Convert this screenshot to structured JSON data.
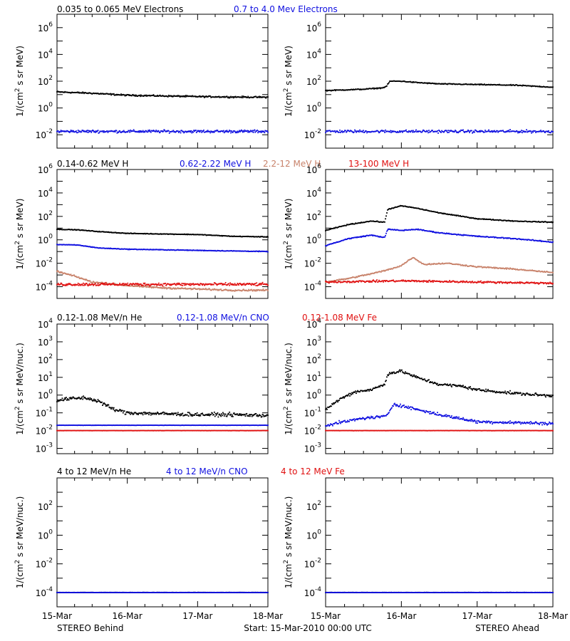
{
  "colors": {
    "black": "#000000",
    "blue": "#1010e0",
    "tan": "#c8826a",
    "red": "#e01010"
  },
  "footer": {
    "left": "STEREO Behind",
    "center": "Start: 15-Mar-2010 00:00 UTC",
    "right": "STEREO Ahead"
  },
  "x_axis": {
    "ticks": [
      "15-Mar",
      "16-Mar",
      "17-Mar",
      "18-Mar"
    ],
    "range_days": [
      0,
      3
    ]
  },
  "legends": [
    [
      {
        "text": "0.035 to 0.065 MeV Electrons",
        "color": "black"
      },
      {
        "text": "0.7 to 4.0 Mev Electrons",
        "color": "blue"
      }
    ],
    [
      {
        "text": "0.14-0.62 MeV H",
        "color": "black"
      },
      {
        "text": "0.62-2.22 MeV H",
        "color": "blue"
      },
      {
        "text": "2.2-12 MeV H",
        "color": "tan"
      },
      {
        "text": "13-100 MeV H",
        "color": "red"
      }
    ],
    [
      {
        "text": "0.12-1.08 MeV/n He",
        "color": "black"
      },
      {
        "text": "0.12-1.08 MeV/n CNO",
        "color": "blue"
      },
      {
        "text": "0.12-1.08 MeV Fe",
        "color": "red"
      }
    ],
    [
      {
        "text": "4 to 12 MeV/n He",
        "color": "black"
      },
      {
        "text": "4 to 12 MeV/n CNO",
        "color": "blue"
      },
      {
        "text": "4 to 12 MeV Fe",
        "color": "red"
      }
    ]
  ],
  "chart_data": [
    {
      "type": "scatter",
      "spacecraft": "STEREO Behind",
      "row": 0,
      "ylabel_lines": [
        "1/(cm",
        "2",
        " s sr MeV)"
      ],
      "yscale": "log",
      "ylim_exp": [
        -3,
        7
      ],
      "yticks": [
        {
          "base": "10",
          "exp": "-2"
        },
        {
          "base": "10",
          "exp": "0"
        },
        {
          "base": "10",
          "exp": "2"
        },
        {
          "base": "10",
          "exp": "4"
        },
        {
          "base": "10",
          "exp": "6"
        }
      ],
      "series": [
        {
          "color": "black",
          "x": [
            0,
            0.25,
            0.5,
            1.0,
            1.5,
            2.0,
            2.5,
            3.0
          ],
          "log10_y": [
            1.2,
            1.15,
            1.1,
            0.95,
            0.9,
            0.85,
            0.82,
            0.8
          ],
          "scatter": 0.08
        },
        {
          "color": "blue",
          "x": [
            0,
            1.0,
            2.0,
            3.0
          ],
          "log10_y": [
            -1.75,
            -1.75,
            -1.75,
            -1.75
          ],
          "scatter": 0.15
        }
      ]
    },
    {
      "type": "scatter",
      "spacecraft": "STEREO Ahead",
      "row": 0,
      "ylabel_lines": [
        "1/(cm",
        "2",
        " s sr MeV)"
      ],
      "yscale": "log",
      "ylim_exp": [
        -3,
        7
      ],
      "yticks": [
        {
          "base": "10",
          "exp": "-2"
        },
        {
          "base": "10",
          "exp": "0"
        },
        {
          "base": "10",
          "exp": "2"
        },
        {
          "base": "10",
          "exp": "4"
        },
        {
          "base": "10",
          "exp": "6"
        }
      ],
      "series": [
        {
          "color": "black",
          "x": [
            0,
            0.5,
            0.75,
            0.8,
            0.85,
            1.0,
            1.2,
            1.5,
            2.0,
            2.5,
            3.0
          ],
          "log10_y": [
            1.3,
            1.4,
            1.5,
            1.6,
            2.0,
            2.0,
            1.9,
            1.8,
            1.75,
            1.7,
            1.55
          ],
          "scatter": 0.05
        },
        {
          "color": "blue",
          "x": [
            0,
            1.0,
            2.0,
            3.0
          ],
          "log10_y": [
            -1.75,
            -1.75,
            -1.75,
            -1.75
          ],
          "scatter": 0.15
        }
      ]
    },
    {
      "type": "scatter",
      "spacecraft": "STEREO Behind",
      "row": 1,
      "ylabel_lines": [
        "1/(cm",
        "2",
        " s sr MeV)"
      ],
      "yscale": "log",
      "ylim_exp": [
        -5,
        6
      ],
      "yticks": [
        {
          "base": "10",
          "exp": "-4"
        },
        {
          "base": "10",
          "exp": "-2"
        },
        {
          "base": "10",
          "exp": "0"
        },
        {
          "base": "10",
          "exp": "2"
        },
        {
          "base": "10",
          "exp": "4"
        },
        {
          "base": "10",
          "exp": "6"
        }
      ],
      "series": [
        {
          "color": "black",
          "x": [
            0,
            0.3,
            0.6,
            1.0,
            1.5,
            2.0,
            2.5,
            3.0
          ],
          "log10_y": [
            0.9,
            0.85,
            0.7,
            0.55,
            0.5,
            0.45,
            0.3,
            0.25
          ],
          "scatter": 0.04
        },
        {
          "color": "blue",
          "x": [
            0,
            0.3,
            0.6,
            1.0,
            1.5,
            2.0,
            2.5,
            3.0
          ],
          "log10_y": [
            -0.4,
            -0.45,
            -0.7,
            -0.8,
            -0.85,
            -0.9,
            -0.95,
            -1.0
          ],
          "scatter": 0.04
        },
        {
          "color": "tan",
          "x": [
            0,
            0.25,
            0.5,
            1.0,
            1.5,
            2.0,
            2.5,
            3.0
          ],
          "log10_y": [
            -2.7,
            -3.1,
            -3.6,
            -3.9,
            -4.1,
            -4.2,
            -4.3,
            -4.3
          ],
          "scatter": 0.1
        },
        {
          "color": "red",
          "x": [
            0,
            1.0,
            2.0,
            3.0
          ],
          "log10_y": [
            -3.8,
            -3.8,
            -3.8,
            -3.8
          ],
          "scatter": 0.18
        }
      ]
    },
    {
      "type": "scatter",
      "spacecraft": "STEREO Ahead",
      "row": 1,
      "ylabel_lines": [
        "1/(cm",
        "2",
        " s sr MeV)"
      ],
      "yscale": "log",
      "ylim_exp": [
        -5,
        6
      ],
      "yticks": [
        {
          "base": "10",
          "exp": "-4"
        },
        {
          "base": "10",
          "exp": "-2"
        },
        {
          "base": "10",
          "exp": "0"
        },
        {
          "base": "10",
          "exp": "2"
        },
        {
          "base": "10",
          "exp": "4"
        },
        {
          "base": "10",
          "exp": "6"
        }
      ],
      "series": [
        {
          "color": "black",
          "x": [
            0,
            0.3,
            0.6,
            0.78,
            0.82,
            1.0,
            1.2,
            1.5,
            2.0,
            2.5,
            3.0
          ],
          "log10_y": [
            0.8,
            1.3,
            1.6,
            1.5,
            2.6,
            2.9,
            2.7,
            2.3,
            1.8,
            1.6,
            1.5
          ],
          "scatter": 0.05
        },
        {
          "color": "blue",
          "x": [
            0,
            0.3,
            0.6,
            0.78,
            0.82,
            1.0,
            1.2,
            1.5,
            2.0,
            2.5,
            3.0
          ],
          "log10_y": [
            -0.5,
            0.1,
            0.4,
            0.2,
            0.9,
            0.8,
            0.9,
            0.6,
            0.3,
            0.1,
            -0.2
          ],
          "scatter": 0.06
        },
        {
          "color": "tan",
          "x": [
            0,
            0.3,
            0.6,
            0.8,
            1.0,
            1.15,
            1.3,
            1.6,
            2.0,
            2.5,
            3.0
          ],
          "log10_y": [
            -3.6,
            -3.3,
            -2.9,
            -2.6,
            -2.2,
            -1.5,
            -2.1,
            -2.0,
            -2.3,
            -2.5,
            -2.8
          ],
          "scatter": 0.08
        },
        {
          "color": "red",
          "x": [
            0,
            1.0,
            2.0,
            3.0
          ],
          "log10_y": [
            -3.6,
            -3.5,
            -3.6,
            -3.7
          ],
          "scatter": 0.12
        }
      ]
    },
    {
      "type": "scatter",
      "spacecraft": "STEREO Behind",
      "row": 2,
      "ylabel_lines": [
        "1/(cm",
        "2",
        " s sr MeV/nuc.)"
      ],
      "yscale": "log",
      "ylim_exp": [
        -3.3,
        4
      ],
      "yticks": [
        {
          "base": "10",
          "exp": "-3"
        },
        {
          "base": "10",
          "exp": "-2"
        },
        {
          "base": "10",
          "exp": "-1"
        },
        {
          "base": "10",
          "exp": "0"
        },
        {
          "base": "10",
          "exp": "1"
        },
        {
          "base": "10",
          "exp": "2"
        },
        {
          "base": "10",
          "exp": "3"
        },
        {
          "base": "10",
          "exp": "4"
        }
      ],
      "series": [
        {
          "color": "black",
          "x": [
            0,
            0.2,
            0.4,
            0.6,
            0.8,
            1.0,
            1.5,
            2.0,
            2.5,
            3.0
          ],
          "log10_y": [
            -0.3,
            -0.2,
            -0.15,
            -0.35,
            -0.8,
            -1.0,
            -1.05,
            -1.1,
            -1.1,
            -1.15
          ],
          "scatter": 0.15
        },
        {
          "color": "blue",
          "x": [
            0,
            1.0,
            2.0,
            3.0
          ],
          "log10_y": [
            -1.7,
            -1.7,
            -1.7,
            -1.7
          ],
          "scatter": 0.01
        },
        {
          "color": "red",
          "x": [
            0,
            1.0,
            2.0,
            3.0
          ],
          "log10_y": [
            -2.0,
            -2.0,
            -2.0,
            -2.0
          ],
          "scatter": 0.01
        }
      ]
    },
    {
      "type": "scatter",
      "spacecraft": "STEREO Ahead",
      "row": 2,
      "ylabel_lines": [
        "1/(cm",
        "2",
        " s sr MeV/nuc.)"
      ],
      "yscale": "log",
      "ylim_exp": [
        -3.3,
        4
      ],
      "yticks": [
        {
          "base": "10",
          "exp": "-3"
        },
        {
          "base": "10",
          "exp": "-2"
        },
        {
          "base": "10",
          "exp": "-1"
        },
        {
          "base": "10",
          "exp": "0"
        },
        {
          "base": "10",
          "exp": "1"
        },
        {
          "base": "10",
          "exp": "2"
        },
        {
          "base": "10",
          "exp": "3"
        },
        {
          "base": "10",
          "exp": "4"
        }
      ],
      "series": [
        {
          "color": "black",
          "x": [
            0,
            0.2,
            0.4,
            0.6,
            0.78,
            0.82,
            1.0,
            1.2,
            1.5,
            1.8,
            2.0,
            2.5,
            3.0
          ],
          "log10_y": [
            -0.8,
            -0.2,
            0.2,
            0.3,
            0.6,
            1.2,
            1.35,
            1.0,
            0.6,
            0.5,
            0.3,
            0.1,
            -0.05
          ],
          "scatter": 0.12
        },
        {
          "color": "blue",
          "x": [
            0,
            0.5,
            0.8,
            0.9,
            1.0,
            1.2,
            1.5,
            2.0,
            3.0
          ],
          "log10_y": [
            -1.7,
            -1.3,
            -1.2,
            -0.5,
            -0.6,
            -0.8,
            -1.1,
            -1.5,
            -1.6
          ],
          "scatter": 0.12
        },
        {
          "color": "red",
          "x": [
            0,
            1.0,
            2.0,
            3.0
          ],
          "log10_y": [
            -2.0,
            -2.0,
            -2.0,
            -2.0
          ],
          "scatter": 0.01
        }
      ]
    },
    {
      "type": "scatter",
      "spacecraft": "STEREO Behind",
      "row": 3,
      "ylabel_lines": [
        "1/(cm",
        "2",
        " s sr MeV/nuc.)"
      ],
      "yscale": "log",
      "ylim_exp": [
        -5,
        4
      ],
      "yticks": [
        {
          "base": "10",
          "exp": "-4"
        },
        {
          "base": "10",
          "exp": "-2"
        },
        {
          "base": "10",
          "exp": "0"
        },
        {
          "base": "10",
          "exp": "2"
        }
      ],
      "series": [
        {
          "color": "black",
          "x": [
            0,
            3.0
          ],
          "log10_y": [
            -4.0,
            -4.0
          ],
          "scatter": 0.01
        },
        {
          "color": "blue",
          "x": [
            0,
            3.0
          ],
          "log10_y": [
            -4.0,
            -4.0
          ],
          "scatter": 0.01
        }
      ]
    },
    {
      "type": "scatter",
      "spacecraft": "STEREO Ahead",
      "row": 3,
      "ylabel_lines": [
        "1/(cm",
        "2",
        " s sr MeV/nuc.)"
      ],
      "yscale": "log",
      "ylim_exp": [
        -5,
        4
      ],
      "yticks": [
        {
          "base": "10",
          "exp": "-4"
        },
        {
          "base": "10",
          "exp": "-2"
        },
        {
          "base": "10",
          "exp": "0"
        },
        {
          "base": "10",
          "exp": "2"
        }
      ],
      "series": [
        {
          "color": "black",
          "x": [
            0,
            3.0
          ],
          "log10_y": [
            -4.0,
            -4.0
          ],
          "scatter": 0.01
        },
        {
          "color": "blue",
          "x": [
            0,
            3.0
          ],
          "log10_y": [
            -4.0,
            -4.0
          ],
          "scatter": 0.01
        }
      ]
    }
  ]
}
